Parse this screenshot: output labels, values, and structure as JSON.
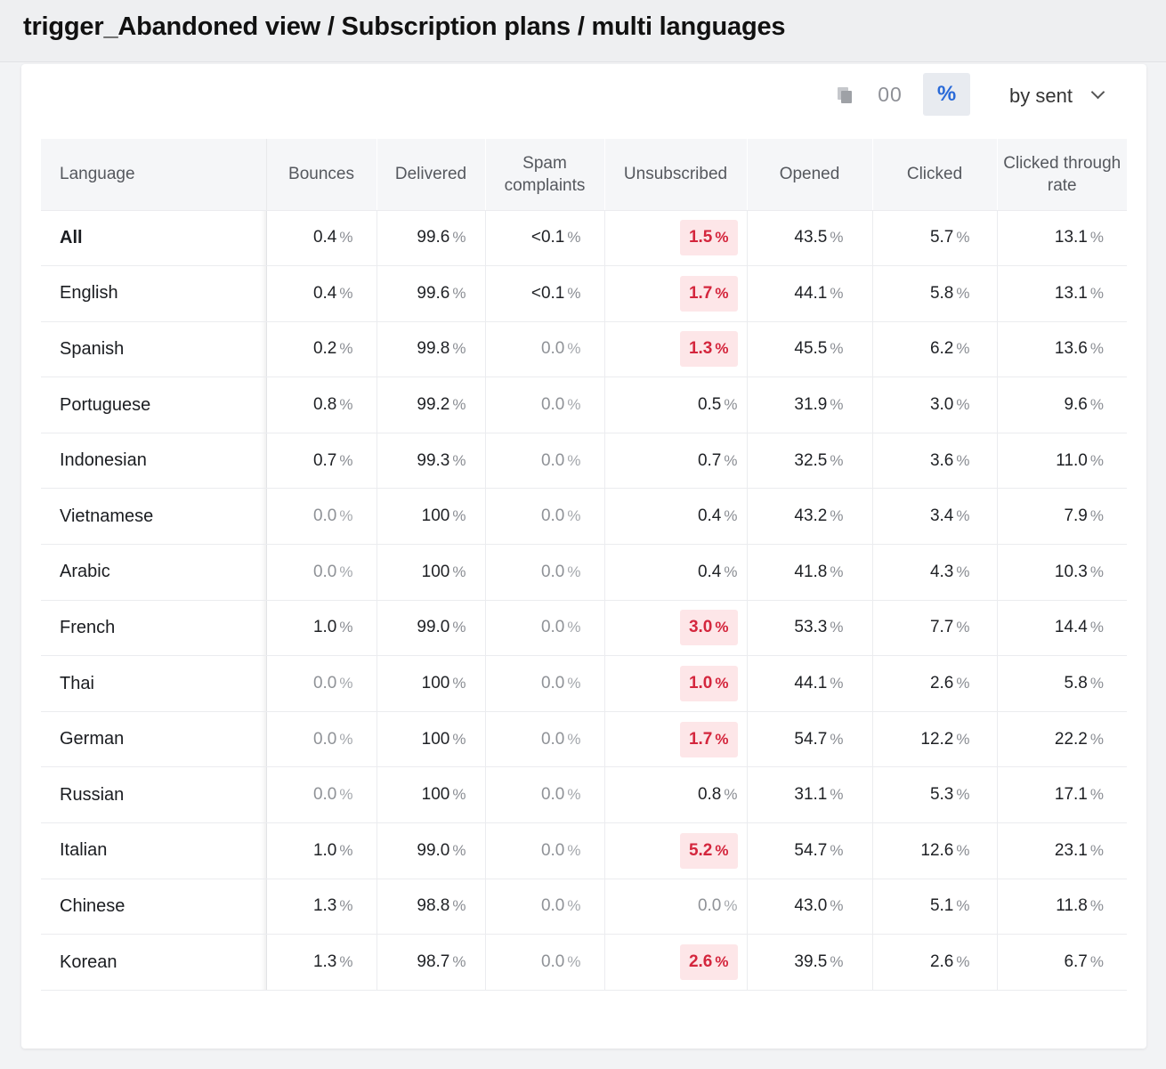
{
  "header": {
    "title": "trigger_Abandoned view / Subscription plans / multi languages"
  },
  "toolbar": {
    "copy_icon": "copy-icon",
    "absolute_label": "00",
    "percent_label": "%",
    "sort_label": "by sent"
  },
  "colors": {
    "accent": "#2a6ad8",
    "alert_text": "#d4263d",
    "alert_bg": "#fde6e8"
  },
  "table": {
    "columns": [
      {
        "key": "language",
        "label": "Language"
      },
      {
        "key": "bounces",
        "label": "Bounces"
      },
      {
        "key": "delivered",
        "label": "Delivered"
      },
      {
        "key": "spam",
        "label": "Spam complaints"
      },
      {
        "key": "unsub",
        "label": "Unsubscribed"
      },
      {
        "key": "opened",
        "label": "Opened"
      },
      {
        "key": "clicked",
        "label": "Clicked"
      },
      {
        "key": "ctr",
        "label": "Clicked through rate"
      }
    ],
    "unit": "%",
    "rows": [
      {
        "language": "All",
        "bounces": "0.4",
        "delivered": "99.6",
        "spam": "<0.1",
        "unsub": "1.5",
        "opened": "43.5",
        "clicked": "5.7",
        "ctr": "13.1",
        "unsub_alert": true
      },
      {
        "language": "English",
        "bounces": "0.4",
        "delivered": "99.6",
        "spam": "<0.1",
        "unsub": "1.7",
        "opened": "44.1",
        "clicked": "5.8",
        "ctr": "13.1",
        "unsub_alert": true
      },
      {
        "language": "Spanish",
        "bounces": "0.2",
        "delivered": "99.8",
        "spam": "0.0",
        "unsub": "1.3",
        "opened": "45.5",
        "clicked": "6.2",
        "ctr": "13.6",
        "unsub_alert": true
      },
      {
        "language": "Portuguese",
        "bounces": "0.8",
        "delivered": "99.2",
        "spam": "0.0",
        "unsub": "0.5",
        "opened": "31.9",
        "clicked": "3.0",
        "ctr": "9.6",
        "unsub_alert": false
      },
      {
        "language": "Indonesian",
        "bounces": "0.7",
        "delivered": "99.3",
        "spam": "0.0",
        "unsub": "0.7",
        "opened": "32.5",
        "clicked": "3.6",
        "ctr": "11.0",
        "unsub_alert": false
      },
      {
        "language": "Vietnamese",
        "bounces": "0.0",
        "delivered": "100",
        "spam": "0.0",
        "unsub": "0.4",
        "opened": "43.2",
        "clicked": "3.4",
        "ctr": "7.9",
        "unsub_alert": false
      },
      {
        "language": "Arabic",
        "bounces": "0.0",
        "delivered": "100",
        "spam": "0.0",
        "unsub": "0.4",
        "opened": "41.8",
        "clicked": "4.3",
        "ctr": "10.3",
        "unsub_alert": false
      },
      {
        "language": "French",
        "bounces": "1.0",
        "delivered": "99.0",
        "spam": "0.0",
        "unsub": "3.0",
        "opened": "53.3",
        "clicked": "7.7",
        "ctr": "14.4",
        "unsub_alert": true
      },
      {
        "language": "Thai",
        "bounces": "0.0",
        "delivered": "100",
        "spam": "0.0",
        "unsub": "1.0",
        "opened": "44.1",
        "clicked": "2.6",
        "ctr": "5.8",
        "unsub_alert": true
      },
      {
        "language": "German",
        "bounces": "0.0",
        "delivered": "100",
        "spam": "0.0",
        "unsub": "1.7",
        "opened": "54.7",
        "clicked": "12.2",
        "ctr": "22.2",
        "unsub_alert": true
      },
      {
        "language": "Russian",
        "bounces": "0.0",
        "delivered": "100",
        "spam": "0.0",
        "unsub": "0.8",
        "opened": "31.1",
        "clicked": "5.3",
        "ctr": "17.1",
        "unsub_alert": false
      },
      {
        "language": "Italian",
        "bounces": "1.0",
        "delivered": "99.0",
        "spam": "0.0",
        "unsub": "5.2",
        "opened": "54.7",
        "clicked": "12.6",
        "ctr": "23.1",
        "unsub_alert": true
      },
      {
        "language": "Chinese",
        "bounces": "1.3",
        "delivered": "98.8",
        "spam": "0.0",
        "unsub": "0.0",
        "opened": "43.0",
        "clicked": "5.1",
        "ctr": "11.8",
        "unsub_alert": false
      },
      {
        "language": "Korean",
        "bounces": "1.3",
        "delivered": "98.7",
        "spam": "0.0",
        "unsub": "2.6",
        "opened": "39.5",
        "clicked": "2.6",
        "ctr": "6.7",
        "unsub_alert": true
      }
    ]
  }
}
